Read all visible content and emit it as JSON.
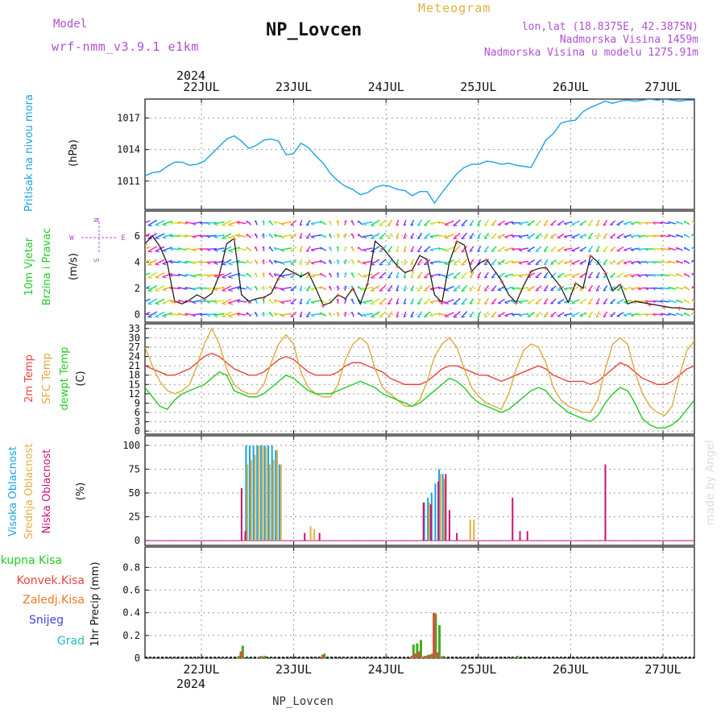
{
  "header": {
    "model_label": "Model",
    "model_name": "wrf-nmm_v3.9.1 e1km",
    "station_title": "NP_Lovcen",
    "product": "Meteogram",
    "lonlat": "lon,lat (18.8375E, 42.3875N)",
    "altitude": "Nadmorska Visina 1459m",
    "model_altitude": "Nadmorska Visina u modelu 1275.91m",
    "year": "2024",
    "footer_station": "NP_Lovcen",
    "watermark": "made by Angel"
  },
  "colors": {
    "pressure": "#1aa3e6",
    "temp2m": "#e8453c",
    "sfc": "#e0a93c",
    "dewpt": "#22cc22",
    "high_cloud": "#1aa3e6",
    "mid_cloud": "#e0b040",
    "low_cloud": "#cc1177",
    "total_precip": "#44aa22",
    "conv_precip": "#e8453c",
    "frozen": "#ee7722",
    "snow": "#4444dd",
    "hail": "#22bbbb",
    "label_purple": "#b050d0",
    "label_gold": "#e0b040"
  },
  "chart_data": [
    {
      "id": "pressure",
      "type": "line",
      "ylabel": "Pritisak na nivou mora",
      "unit": "(hPa)",
      "yticks": [
        1011,
        1014,
        1017
      ],
      "ylim": [
        1008.3,
        1018.8
      ],
      "x_days": [
        "22JUL",
        "23JUL",
        "24JUL",
        "25JUL",
        "26JUL",
        "27JUL"
      ],
      "x": [
        0,
        2,
        4,
        6,
        8,
        10,
        12,
        14,
        16,
        18,
        20,
        22,
        24,
        26,
        28,
        30,
        32,
        34,
        36,
        38,
        40,
        42,
        44,
        46,
        48,
        50,
        52,
        54,
        56,
        58,
        60,
        62,
        64,
        66,
        68,
        70,
        72,
        74,
        76,
        78,
        80,
        82,
        84,
        86,
        88,
        90,
        92,
        94,
        96,
        98,
        100,
        102,
        104,
        106,
        108,
        110,
        112,
        114,
        116,
        118,
        120,
        122,
        124,
        126,
        128,
        130,
        132,
        134,
        136,
        138,
        140,
        142,
        144,
        146,
        148
      ],
      "values": [
        1011.5,
        1011.8,
        1011.9,
        1012.4,
        1012.8,
        1012.8,
        1012.5,
        1012.6,
        1012.9,
        1013.6,
        1014.3,
        1015.0,
        1015.3,
        1014.8,
        1014.1,
        1014.4,
        1014.9,
        1015.0,
        1014.8,
        1013.5,
        1013.6,
        1014.6,
        1014.2,
        1013.4,
        1012.7,
        1011.7,
        1011.0,
        1010.5,
        1010.2,
        1009.7,
        1009.9,
        1010.4,
        1010.6,
        1010.5,
        1010.2,
        1010.1,
        1009.6,
        1010.0,
        1010.0,
        1008.9,
        1009.9,
        1010.8,
        1011.7,
        1012.3,
        1012.6,
        1012.6,
        1012.9,
        1012.8,
        1012.6,
        1012.7,
        1012.5,
        1012.4,
        1012.3,
        1013.6,
        1014.9,
        1015.5,
        1016.5,
        1016.7,
        1016.8,
        1017.6,
        1018.0,
        1018.3,
        1018.6,
        1018.4,
        1018.6,
        1018.7,
        1018.6,
        1018.7,
        1018.8,
        1018.7,
        1018.8,
        1018.7,
        1018.6,
        1018.7,
        1018.7
      ]
    },
    {
      "id": "wind",
      "type": "line",
      "ylabel": "10m Vjetar Brzina i Pravac",
      "unit": "(m/s)",
      "compass": {
        "north": "N",
        "south": "S",
        "east": "E",
        "west": "W"
      },
      "yticks": [
        0,
        2,
        4,
        6
      ],
      "ylim": [
        -0.6,
        7.9
      ],
      "x": [
        0,
        2,
        4,
        6,
        8,
        10,
        12,
        14,
        16,
        18,
        20,
        22,
        24,
        26,
        28,
        30,
        32,
        34,
        36,
        38,
        40,
        42,
        44,
        46,
        48,
        50,
        52,
        54,
        56,
        58,
        60,
        62,
        64,
        66,
        68,
        70,
        72,
        74,
        76,
        78,
        80,
        82,
        84,
        86,
        88,
        90,
        92,
        94,
        96,
        98,
        100,
        102,
        104,
        106,
        108,
        110,
        112,
        114,
        116,
        118,
        120,
        122,
        124,
        126,
        128,
        130,
        132,
        134,
        136,
        138,
        140,
        142,
        144,
        146,
        148
      ],
      "values": [
        5.4,
        6.0,
        5.2,
        3.9,
        1.0,
        0.8,
        1.1,
        1.5,
        1.2,
        1.6,
        3.0,
        5.4,
        5.8,
        1.5,
        1.0,
        1.2,
        1.3,
        1.6,
        2.8,
        3.5,
        3.2,
        2.9,
        3.2,
        2.0,
        0.7,
        0.9,
        1.5,
        1.2,
        2.0,
        0.8,
        2.4,
        5.6,
        5.1,
        4.4,
        3.7,
        3.2,
        3.4,
        4.5,
        4.2,
        1.5,
        0.9,
        4.0,
        5.6,
        5.3,
        3.3,
        3.9,
        4.2,
        3.4,
        2.6,
        1.5,
        0.9,
        2.2,
        3.3,
        3.5,
        3.6,
        2.8,
        2.1,
        0.9,
        2.4,
        2.0,
        4.5,
        4.0,
        3.2,
        1.8,
        2.3,
        0.8,
        1.0,
        0.9,
        0.8,
        0.7,
        0.6,
        0.5,
        0.5,
        0.4,
        0.4
      ],
      "dir_deg": [
        220,
        230,
        225,
        215,
        170,
        150,
        160,
        200,
        180,
        190,
        200,
        225,
        210,
        160,
        120,
        100,
        90,
        110,
        150,
        200,
        240,
        260,
        250,
        200,
        130,
        100,
        90,
        80,
        100,
        120,
        200,
        230,
        240,
        250,
        260,
        260,
        255,
        250,
        240,
        200,
        150,
        220,
        240,
        245,
        250,
        255,
        250,
        245,
        230,
        210,
        180,
        200,
        230,
        240,
        250,
        240,
        230,
        200,
        220,
        230,
        250,
        255,
        250,
        240,
        230,
        210,
        200,
        190,
        180,
        170,
        160,
        150,
        140,
        130,
        120
      ]
    },
    {
      "id": "temperature",
      "type": "line",
      "ylabel_series": [
        "2m Temp",
        "SFC Temp",
        "dewpt Temp"
      ],
      "unit": "(C)",
      "yticks": [
        0,
        3,
        6,
        9,
        12,
        15,
        18,
        21,
        24,
        27,
        30,
        33
      ],
      "ylim": [
        -1,
        34.5
      ],
      "x": [
        0,
        2,
        4,
        6,
        8,
        10,
        12,
        14,
        16,
        18,
        20,
        22,
        24,
        26,
        28,
        30,
        32,
        34,
        36,
        38,
        40,
        42,
        44,
        46,
        48,
        50,
        52,
        54,
        56,
        58,
        60,
        62,
        64,
        66,
        68,
        70,
        72,
        74,
        76,
        78,
        80,
        82,
        84,
        86,
        88,
        90,
        92,
        94,
        96,
        98,
        100,
        102,
        104,
        106,
        108,
        110,
        112,
        114,
        116,
        118,
        120,
        122,
        124,
        126,
        128,
        130,
        132,
        134,
        136,
        138,
        140,
        142,
        144,
        146,
        148
      ],
      "series": [
        {
          "name": "2m Temp",
          "values": [
            21,
            20,
            19,
            18,
            18,
            19,
            20,
            22,
            24,
            25,
            24,
            22,
            20,
            19,
            18,
            18,
            19,
            21,
            23,
            24,
            23,
            21,
            19,
            18,
            18,
            18,
            19,
            21,
            22,
            22,
            21,
            20,
            19,
            17,
            16,
            15,
            15,
            15,
            16,
            18,
            20,
            21,
            21,
            20,
            19,
            18,
            18,
            17,
            16,
            17,
            18,
            19,
            20,
            21,
            20,
            18,
            17,
            16,
            16,
            16,
            15,
            16,
            18,
            20,
            22,
            21,
            19,
            17,
            16,
            15,
            15,
            16,
            18,
            20,
            21
          ]
        },
        {
          "name": "SFC Temp",
          "values": [
            27,
            21,
            16,
            13,
            12,
            13,
            15,
            21,
            28,
            33,
            28,
            20,
            15,
            13,
            12,
            12,
            15,
            22,
            28,
            31,
            28,
            19,
            14,
            12,
            11,
            11,
            15,
            23,
            28,
            30,
            28,
            20,
            14,
            12,
            10,
            8,
            8,
            10,
            16,
            24,
            28,
            30,
            27,
            20,
            14,
            11,
            9,
            8,
            7,
            12,
            20,
            26,
            28,
            27,
            22,
            14,
            10,
            8,
            7,
            6,
            6,
            10,
            20,
            28,
            30,
            28,
            19,
            12,
            8,
            6,
            5,
            8,
            18,
            26,
            29
          ]
        },
        {
          "name": "dewpt Temp",
          "values": [
            14,
            11,
            8,
            7,
            10,
            12,
            13,
            14,
            15,
            17,
            19,
            18,
            13,
            12,
            11,
            11,
            12,
            14,
            16,
            18,
            17,
            15,
            13,
            12,
            12,
            12,
            13,
            14,
            15,
            16,
            15,
            14,
            12,
            11,
            10,
            9,
            8,
            9,
            11,
            13,
            15,
            17,
            16,
            14,
            11,
            9,
            8,
            7,
            6,
            7,
            9,
            11,
            13,
            14,
            13,
            10,
            8,
            6,
            5,
            4,
            3,
            5,
            9,
            12,
            14,
            13,
            9,
            4,
            2,
            1,
            1,
            2,
            4,
            7,
            10
          ]
        }
      ]
    },
    {
      "id": "clouds",
      "type": "bar",
      "ylabel_series": [
        "Visoka Oblacnost",
        "Srednja Oblacnost",
        "Niska Oblacnost"
      ],
      "unit": "(%)",
      "yticks": [
        0,
        25,
        50,
        75,
        100
      ],
      "ylim": [
        -5,
        110
      ],
      "series": [
        {
          "name": "Visoka Oblacnost",
          "x": [
            27,
            28,
            29,
            30,
            31,
            32,
            33,
            34,
            35,
            36,
            75,
            76,
            77,
            78,
            79,
            80
          ],
          "values": [
            100,
            100,
            100,
            100,
            100,
            100,
            100,
            100,
            95,
            80,
            40,
            45,
            50,
            60,
            75,
            70
          ]
        },
        {
          "name": "Srednja Oblacnost",
          "x": [
            27.4,
            28.4,
            29.4,
            30.4,
            31.4,
            32.4,
            33.4,
            34.4,
            35.4,
            36.4,
            44.4,
            45.4,
            76.4,
            79.4,
            80.4,
            87.4,
            88.4
          ],
          "values": [
            80,
            85,
            90,
            100,
            100,
            98,
            80,
            85,
            95,
            80,
            15,
            12,
            40,
            70,
            65,
            22,
            22
          ]
        },
        {
          "name": "Niska Oblacnost",
          "x": [
            25.8,
            26.8,
            42.8,
            46.8,
            74.8,
            76.8,
            78.8,
            80.8,
            81.8,
            83.8,
            98.8,
            100.8,
            102.8,
            123.8
          ],
          "values": [
            55,
            10,
            8,
            8,
            40,
            38,
            62,
            70,
            32,
            8,
            45,
            10,
            10,
            80
          ]
        }
      ]
    },
    {
      "id": "precip",
      "type": "bar",
      "ylabel": "1hr Precip",
      "unit": "(mm)",
      "legend_labels": [
        "Ukupna Kisa",
        "Konvek.Kisa",
        "Zaledj.Kisa",
        "Snijeg",
        "Grad"
      ],
      "yticks": [
        0,
        0.2,
        0.4,
        0.6,
        0.8
      ],
      "ytick_labels": [
        "0",
        "0.2",
        "0.4",
        "0.6",
        "0.8"
      ],
      "ylim": [
        0,
        0.98
      ],
      "series": [
        {
          "name": "Ukupna Kisa",
          "x": [
            25,
            26,
            31,
            32,
            48,
            72,
            73,
            74,
            75,
            76,
            77,
            78,
            79,
            80,
            100
          ],
          "values": [
            0.02,
            0.11,
            0.02,
            0.02,
            0.04,
            0.12,
            0.13,
            0.16,
            0.02,
            0.03,
            0.04,
            0.39,
            0.29,
            0.02,
            0.02
          ]
        },
        {
          "name": "Konvek.Kisa",
          "x": [
            24.5,
            25.5,
            30.5,
            31.5,
            47.5,
            71.5,
            72.5,
            73.5,
            74.5,
            75.5,
            76.5,
            77.5,
            78.5,
            79.5
          ],
          "values": [
            0.01,
            0.06,
            0.01,
            0.01,
            0.03,
            0.02,
            0.04,
            0.06,
            0.01,
            0.02,
            0.03,
            0.4,
            0.05,
            0.01
          ]
        }
      ]
    }
  ]
}
